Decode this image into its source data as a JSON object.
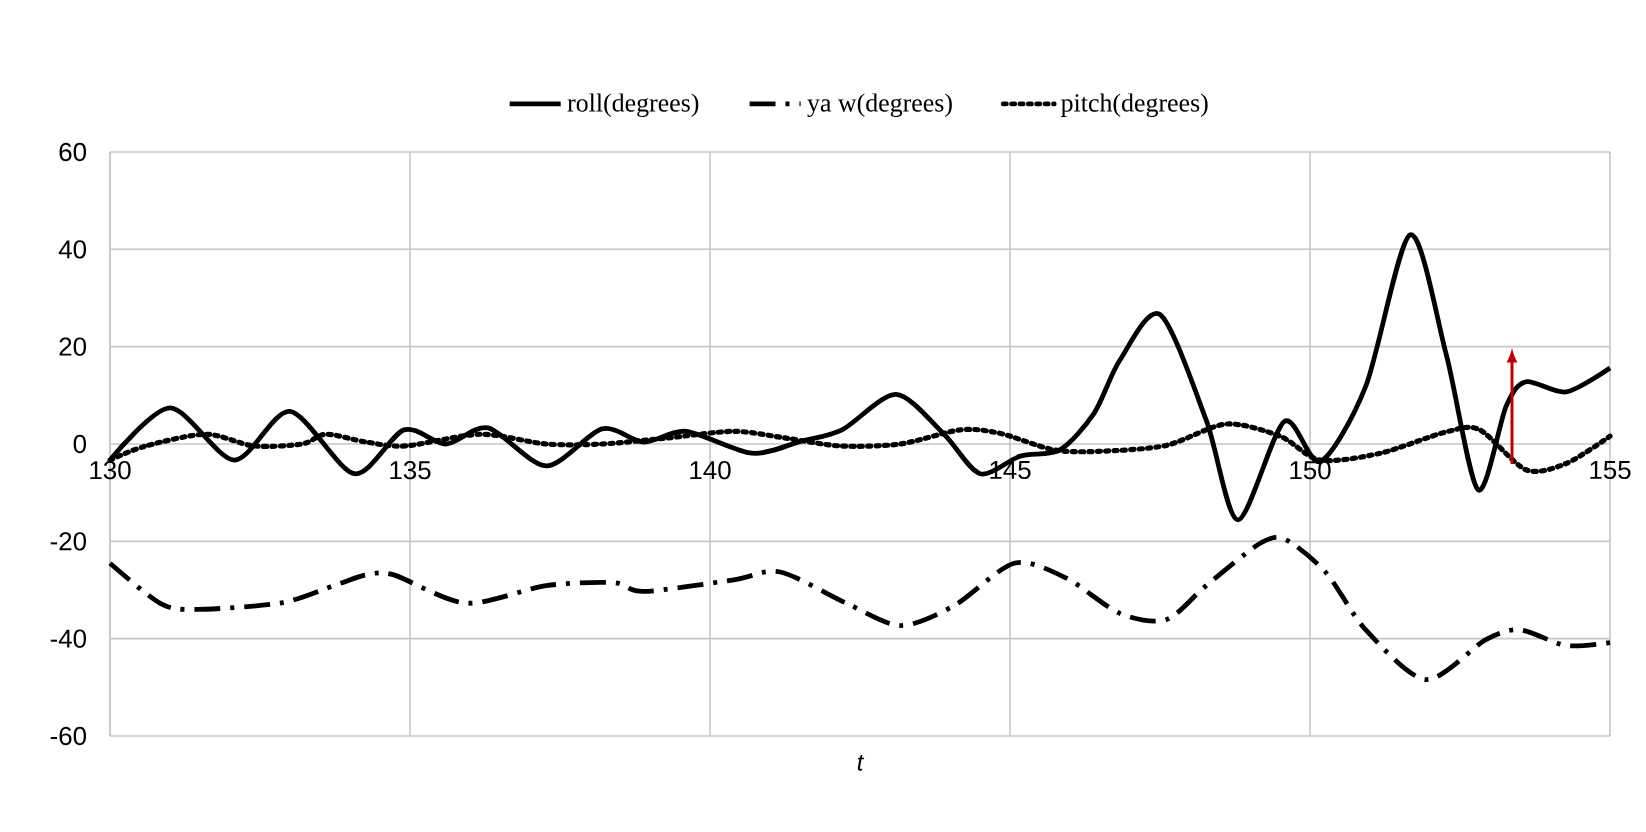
{
  "chart_data": {
    "type": "line",
    "xlabel": "t",
    "xlim": [
      130,
      155
    ],
    "xticks": [
      130,
      135,
      140,
      145,
      150,
      155
    ],
    "ylim": [
      -60,
      60
    ],
    "yticks": [
      -60,
      -40,
      -20,
      0,
      20,
      40,
      60
    ],
    "grid": true,
    "legend": "top",
    "marker": "none",
    "series": [
      {
        "name": "roll(degrees)",
        "color": "#000000",
        "line_style": "solid",
        "x": [
          130,
          131,
          132.07,
          133,
          134.07,
          134.9,
          135.6,
          136.3,
          137.27,
          138.2,
          138.9,
          139.6,
          140.7,
          141.5,
          142.2,
          143.1,
          143.9,
          144.5,
          145.17,
          145.83,
          146.4,
          146.83,
          147.5,
          148.27,
          148.8,
          149.57,
          150.17,
          150.93,
          151.67,
          152.27,
          152.8,
          153.27,
          153.6,
          154.27,
          155
        ],
        "values": [
          -3.3,
          7.4,
          -3.3,
          6.7,
          -6.1,
          2.9,
          0,
          3.3,
          -4.5,
          3.1,
          0.4,
          2.6,
          -1.9,
          0.5,
          2.9,
          10.2,
          2,
          -6.1,
          -2.5,
          -1.2,
          6.3,
          17.2,
          26.6,
          4.9,
          -15.6,
          4.6,
          -3.6,
          11.9,
          43,
          18.4,
          -9.4,
          7.8,
          12.8,
          10.7,
          15.6
        ]
      },
      {
        "name": "ya w(degrees)",
        "color": "#000000",
        "line_style": "dashed",
        "x": [
          130,
          130.83,
          131.4,
          132.83,
          133.73,
          134.27,
          134.73,
          135.93,
          137.27,
          138.4,
          138.9,
          140.4,
          141.17,
          142.27,
          143.17,
          144.07,
          145.07,
          145.93,
          146.83,
          147.6,
          148.27,
          149.17,
          149.6,
          150.27,
          150.93,
          151.93,
          152.93,
          153.5,
          154.27,
          155
        ],
        "values": [
          -24.5,
          -32.7,
          -34,
          -32.7,
          -29.1,
          -26.9,
          -26.9,
          -32.7,
          -29.1,
          -28.5,
          -30.3,
          -27.9,
          -26.3,
          -32.7,
          -37.3,
          -33.2,
          -24.5,
          -27.5,
          -34.8,
          -36.1,
          -29.1,
          -20.4,
          -19.7,
          -26.5,
          -38.2,
          -48.4,
          -40.2,
          -38.2,
          -41.4,
          -40.8
        ]
      },
      {
        "name": "pitch(degrees)",
        "color": "#000000",
        "line_style": "dotted",
        "x": [
          130,
          130.6,
          131.6,
          132.4,
          133.2,
          133.6,
          134.27,
          134.93,
          136.17,
          137.27,
          138.2,
          139.27,
          140.4,
          141.27,
          142.17,
          143.17,
          144.17,
          144.83,
          145.73,
          146.5,
          147.6,
          148.6,
          149.5,
          150.17,
          151.17,
          152.27,
          152.83,
          153.6,
          154.27,
          155
        ],
        "values": [
          -3.3,
          -0.4,
          2,
          -0.4,
          0,
          2,
          0.4,
          -0.4,
          2,
          0,
          0,
          1.2,
          2.6,
          1.2,
          -0.4,
          0,
          2.9,
          2.2,
          -1.2,
          -1.5,
          -0.3,
          4.1,
          1.6,
          -3.3,
          -1.9,
          2.5,
          2.9,
          -5.3,
          -4,
          1.6
        ]
      }
    ]
  }
}
